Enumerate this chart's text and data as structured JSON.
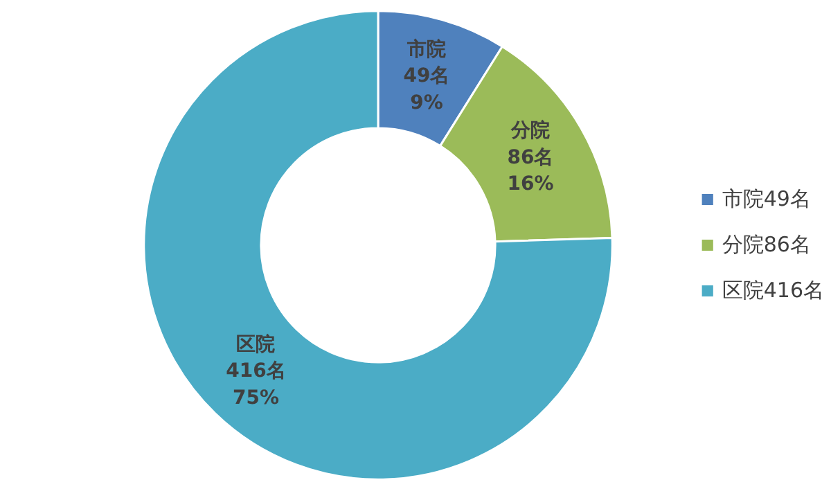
{
  "chart_data": {
    "type": "donut",
    "categories": [
      "市院49名",
      "分院86名",
      "区院416名"
    ],
    "values": [
      49,
      86,
      416
    ],
    "colors": [
      "#4f81bd",
      "#9bbb59",
      "#4bacc6"
    ],
    "value_labels": [
      "市院\n49名\n9%",
      "分院\n86名\n16%",
      "区院\n416名\n75%"
    ],
    "legend": "right"
  }
}
